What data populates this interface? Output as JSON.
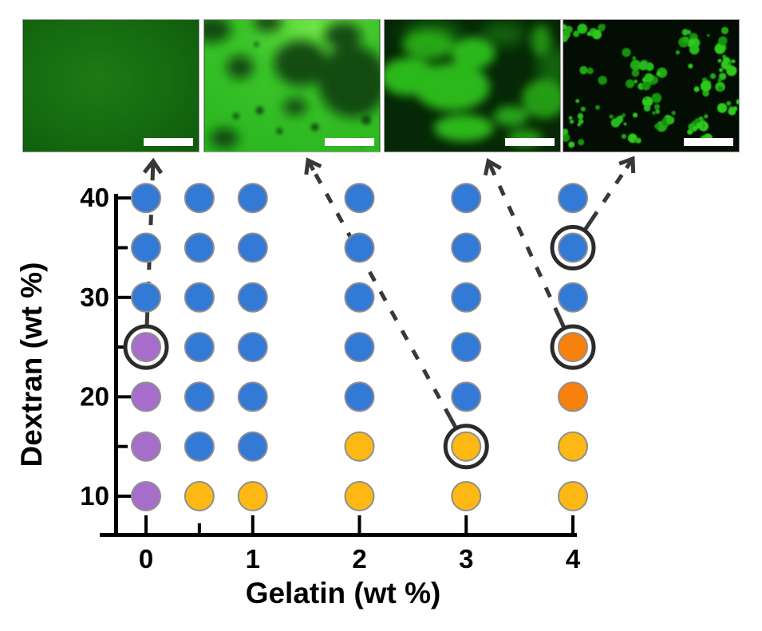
{
  "figure": {
    "panels": [
      {
        "id": "fluorescence-image-1",
        "appearance": "uniform dark green field",
        "has_scale_bar": true,
        "linked_point": {
          "gelatin": 0,
          "dextran": 25
        }
      },
      {
        "id": "fluorescence-image-2",
        "appearance": "bright green phase with dark round voids",
        "has_scale_bar": true,
        "linked_point": {
          "gelatin": 3,
          "dextran": 15
        }
      },
      {
        "id": "fluorescence-image-3",
        "appearance": "bicontinuous bright green network on dark background",
        "has_scale_bar": true,
        "linked_point": {
          "gelatin": 4,
          "dextran": 25
        }
      },
      {
        "id": "fluorescence-image-4",
        "appearance": "discrete bright green droplets on black background",
        "has_scale_bar": true,
        "linked_point": {
          "gelatin": 4,
          "dextran": 35
        }
      }
    ]
  },
  "chart_data": {
    "type": "scatter",
    "xlabel": "Gelatin (wt %)",
    "ylabel": "Dextran (wt %)",
    "x_major_ticks": [
      0,
      1,
      2,
      3,
      4
    ],
    "x_minor_ticks": [
      0.5
    ],
    "y_major_ticks": [
      10,
      20,
      30,
      40
    ],
    "y_minor_ticks": [
      15,
      25,
      35
    ],
    "xlim": [
      -0.45,
      4.85
    ],
    "ylim": [
      6,
      43
    ],
    "grid": false,
    "legend": false,
    "series": [
      {
        "name": "purple-state",
        "color": "#a76dcb",
        "points": [
          [
            0,
            10
          ],
          [
            0,
            15
          ],
          [
            0,
            20
          ],
          [
            0,
            25
          ]
        ]
      },
      {
        "name": "blue-state",
        "color": "#3379d6",
        "points": [
          [
            0,
            30
          ],
          [
            0,
            35
          ],
          [
            0,
            40
          ],
          [
            0.5,
            15
          ],
          [
            0.5,
            20
          ],
          [
            0.5,
            25
          ],
          [
            0.5,
            30
          ],
          [
            0.5,
            35
          ],
          [
            0.5,
            40
          ],
          [
            1,
            15
          ],
          [
            1,
            20
          ],
          [
            1,
            25
          ],
          [
            1,
            30
          ],
          [
            1,
            35
          ],
          [
            1,
            40
          ],
          [
            2,
            20
          ],
          [
            2,
            25
          ],
          [
            2,
            30
          ],
          [
            2,
            35
          ],
          [
            2,
            40
          ],
          [
            3,
            20
          ],
          [
            3,
            25
          ],
          [
            3,
            30
          ],
          [
            3,
            35
          ],
          [
            3,
            40
          ],
          [
            4,
            30
          ],
          [
            4,
            35
          ],
          [
            4,
            40
          ]
        ]
      },
      {
        "name": "yellow-state",
        "color": "#fdb813",
        "points": [
          [
            0.5,
            10
          ],
          [
            1,
            10
          ],
          [
            2,
            10
          ],
          [
            2,
            15
          ],
          [
            3,
            10
          ],
          [
            3,
            15
          ],
          [
            4,
            10
          ],
          [
            4,
            15
          ]
        ]
      },
      {
        "name": "orange-state",
        "color": "#f8800c",
        "points": [
          [
            4,
            20
          ],
          [
            4,
            25
          ]
        ]
      }
    ],
    "circled_points": [
      [
        0,
        25
      ],
      [
        3,
        15
      ],
      [
        4,
        25
      ],
      [
        4,
        35
      ]
    ],
    "arrows": [
      {
        "from": [
          0,
          25
        ],
        "to_panel": 0
      },
      {
        "from": [
          3,
          15
        ],
        "to_panel": 1
      },
      {
        "from": [
          4,
          25
        ],
        "to_panel": 2
      },
      {
        "from": [
          4,
          35
        ],
        "to_panel": 3
      }
    ],
    "styles": {
      "axis_color": "#000000",
      "arrow_color": "#383838",
      "ring_color": "#2b2b2b",
      "marker_stroke": "#8f8f8f"
    }
  }
}
